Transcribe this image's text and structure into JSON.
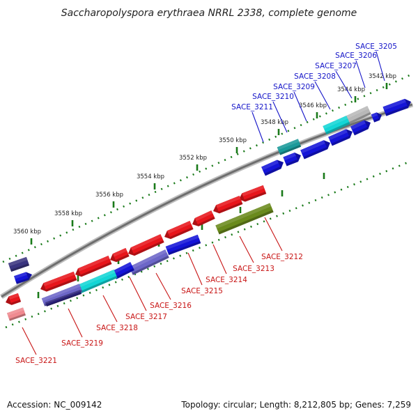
{
  "title": "Saccharopolyspora erythraea NRRL 2338, complete genome",
  "footer": {
    "accession": "Accession: NC_009142",
    "stats": "Topology: circular; Length: 8,212,805 bp; Genes: 7,259"
  },
  "colors": {
    "backbone": "#8a8a8a",
    "tick": "#1a7a1a",
    "forward_label": "#1414c8",
    "reverse_label": "#c81414",
    "red": "#e8151b",
    "blue": "#1414d8",
    "cyan": "#12d6d6",
    "gray": "#b8b8b8",
    "teal": "#1a9a9a",
    "olive": "#6a8a1c",
    "slate": "#6c66c8",
    "navy": "#2a2278",
    "navy_dark": "#3a3480",
    "pink": "#f08a90"
  },
  "tick_labels": [
    "3542 kbp",
    "3544 kbp",
    "3546 kbp",
    "3548 kbp",
    "3550 kbp",
    "3552 kbp",
    "3554 kbp",
    "3556 kbp",
    "3558 kbp",
    "3560 kbp"
  ],
  "forward_genes": [
    "SACE_3205",
    "SACE_3206",
    "SACE_3207",
    "SACE_3208",
    "SACE_3209",
    "SACE_3210",
    "SACE_3211"
  ],
  "reverse_genes": [
    "SACE_3212",
    "SACE_3213",
    "SACE_3214",
    "SACE_3215",
    "SACE_3216",
    "SACE_3217",
    "SACE_3218",
    "SACE_3219",
    "SACE_3221"
  ]
}
